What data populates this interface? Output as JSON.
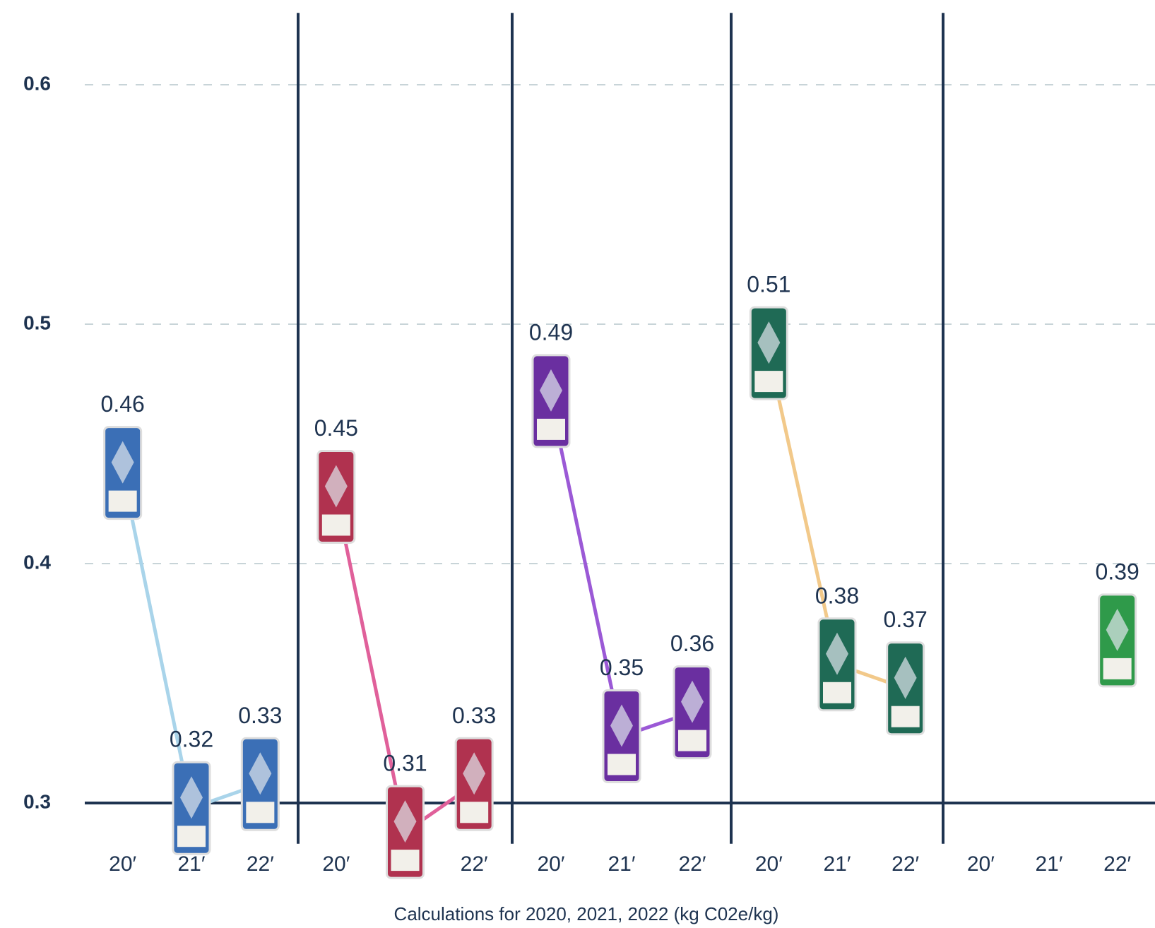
{
  "chart_data": [
    {
      "type": "line",
      "categories": [
        "20′",
        "21′",
        "22′"
      ],
      "values": [
        0.46,
        0.32,
        0.33
      ],
      "color": "#a9d4ea",
      "can_color": "#3b6fb6",
      "ylim": [
        0.28,
        0.63
      ],
      "yticks": [
        0.3,
        0.4,
        0.5,
        0.6
      ],
      "grid": true
    },
    {
      "type": "line",
      "categories": [
        "20′",
        "21′",
        "22′"
      ],
      "values": [
        0.45,
        0.31,
        0.33
      ],
      "color": "#e0609a",
      "can_color": "#b0324f",
      "ylim": [
        0.28,
        0.63
      ],
      "yticks": [
        0.3,
        0.4,
        0.5,
        0.6
      ],
      "grid": true
    },
    {
      "type": "line",
      "categories": [
        "20′",
        "21′",
        "22′"
      ],
      "values": [
        0.49,
        0.35,
        0.36
      ],
      "color": "#9b59d6",
      "can_color": "#6a2fa0",
      "ylim": [
        0.28,
        0.63
      ],
      "yticks": [
        0.3,
        0.4,
        0.5,
        0.6
      ],
      "grid": true
    },
    {
      "type": "line",
      "categories": [
        "20′",
        "21′",
        "22′"
      ],
      "values": [
        0.51,
        0.38,
        0.37
      ],
      "color": "#f2c98a",
      "can_color": "#1f6a55",
      "ylim": [
        0.28,
        0.63
      ],
      "yticks": [
        0.3,
        0.4,
        0.5,
        0.6
      ],
      "grid": true
    },
    {
      "type": "line",
      "categories": [
        "20′",
        "21′",
        "22′"
      ],
      "values": [
        null,
        null,
        0.39
      ],
      "color": "#7cc47c",
      "can_color": "#2f9a4a",
      "ylim": [
        0.28,
        0.63
      ],
      "yticks": [
        0.3,
        0.4,
        0.5,
        0.6
      ],
      "grid": true
    }
  ],
  "x_label": "Calculations for 2020, 2021, 2022 (kg C02e/kg)"
}
